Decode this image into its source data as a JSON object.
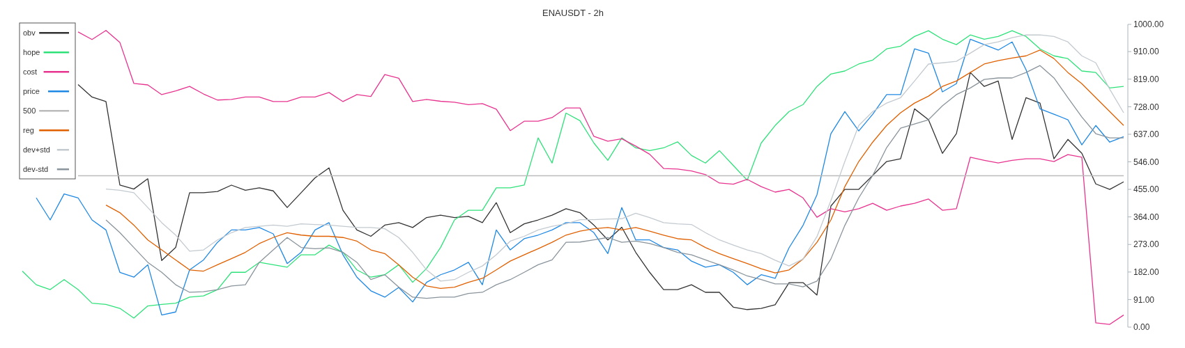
{
  "chart_data": {
    "type": "line",
    "title": "ENAUSDT - 2h",
    "categories": [
      null,
      null,
      null,
      null,
      null,
      null,
      null,
      null,
      null,
      null,
      null,
      null,
      null,
      null,
      null,
      null,
      null,
      null,
      null,
      null,
      null,
      null,
      null,
      null,
      null,
      null,
      null,
      null,
      null,
      null,
      null,
      null,
      null,
      null,
      null,
      null,
      null,
      null,
      null,
      null,
      null,
      null,
      null,
      null,
      null,
      null,
      null,
      null,
      null,
      null,
      null,
      null,
      null,
      null,
      null,
      null,
      null,
      null,
      null,
      null,
      null,
      null,
      null,
      null,
      null,
      null,
      null,
      null,
      null,
      null,
      null,
      null,
      null,
      null,
      null,
      null,
      null,
      null,
      null,
      null
    ],
    "series": [
      {
        "name": "obv",
        "color": "#333333",
        "values": [
          null,
          null,
          null,
          null,
          801,
          760,
          745,
          469,
          456,
          490,
          220,
          263,
          444,
          444,
          448,
          469,
          452,
          460,
          450,
          395,
          444,
          493,
          526,
          386,
          321,
          300,
          337,
          345,
          329,
          362,
          370,
          362,
          366,
          345,
          411,
          312,
          341,
          354,
          370,
          391,
          378,
          337,
          288,
          330,
          247,
          181,
          124,
          124,
          140,
          115,
          115,
          66,
          58,
          62,
          74,
          147,
          147,
          106,
          400,
          455,
          455,
          501,
          547,
          556,
          721,
          685,
          574,
          639,
          841,
          795,
          813,
          620,
          758,
          740,
          556,
          620,
          574,
          473,
          455,
          480
        ]
      },
      {
        "name": "hope",
        "color": "#2ee27a",
        "values": [
          185,
          140,
          124,
          157,
          124,
          79,
          75,
          62,
          30,
          70,
          75,
          79,
          99,
          103,
          124,
          181,
          181,
          214,
          206,
          198,
          239,
          239,
          271,
          247,
          189,
          165,
          173,
          206,
          148,
          194,
          263,
          354,
          386,
          386,
          460,
          460,
          469,
          625,
          542,
          707,
          682,
          608,
          551,
          625,
          592,
          583,
          592,
          612,
          567,
          542,
          583,
          534,
          485,
          608,
          666,
          712,
          735,
          795,
          836,
          846,
          869,
          882,
          919,
          928,
          960,
          979,
          951,
          933,
          965,
          951,
          960,
          979,
          960,
          919,
          896,
          887,
          846,
          841,
          790,
          795
        ]
      },
      {
        "name": "cost",
        "color": "#e8338f",
        "values": [
          null,
          null,
          null,
          null,
          975,
          950,
          980,
          940,
          805,
          800,
          768,
          780,
          795,
          770,
          750,
          752,
          760,
          760,
          745,
          745,
          760,
          760,
          775,
          745,
          768,
          762,
          834,
          822,
          745,
          752,
          746,
          743,
          735,
          738,
          720,
          649,
          680,
          680,
          692,
          724,
          724,
          630,
          614,
          622,
          598,
          571,
          524,
          522,
          516,
          504,
          476,
          472,
          488,
          464,
          446,
          455,
          427,
          363,
          391,
          381,
          391,
          409,
          386,
          400,
          409,
          423,
          386,
          391,
          561,
          551,
          542,
          551,
          556,
          556,
          547,
          570,
          561,
          14,
          9,
          40
        ]
      },
      {
        "name": "price",
        "color": "#1e88e5",
        "values": [
          null,
          427,
          354,
          440,
          427,
          354,
          321,
          181,
          165,
          206,
          40,
          50,
          189,
          222,
          280,
          321,
          321,
          329,
          308,
          210,
          247,
          321,
          345,
          239,
          165,
          120,
          99,
          131,
          83,
          148,
          173,
          189,
          214,
          140,
          321,
          255,
          292,
          304,
          321,
          345,
          345,
          312,
          243,
          395,
          288,
          288,
          263,
          255,
          218,
          198,
          206,
          181,
          140,
          173,
          161,
          262,
          336,
          437,
          639,
          712,
          648,
          703,
          768,
          768,
          919,
          905,
          777,
          804,
          951,
          933,
          915,
          942,
          850,
          721,
          703,
          685,
          602,
          666,
          611,
          629
        ]
      },
      {
        "name": "500",
        "color": "#bbbbbb",
        "values": [
          null,
          null,
          null,
          null,
          500,
          500,
          500,
          500,
          500,
          500,
          500,
          500,
          500,
          500,
          500,
          500,
          500,
          500,
          500,
          500,
          500,
          500,
          500,
          500,
          500,
          500,
          500,
          500,
          500,
          500,
          500,
          500,
          500,
          500,
          500,
          500,
          500,
          500,
          500,
          500,
          500,
          500,
          500,
          500,
          500,
          500,
          500,
          500,
          500,
          500,
          500,
          500,
          500,
          500,
          500,
          500,
          500,
          500,
          500,
          500,
          500,
          500,
          500,
          500,
          500,
          500,
          500,
          500,
          500,
          500,
          500,
          500,
          500,
          500,
          500,
          500,
          500,
          500,
          500,
          500
        ]
      },
      {
        "name": "reg",
        "color": "#e06000",
        "values": [
          null,
          null,
          null,
          null,
          null,
          null,
          403,
          378,
          337,
          288,
          255,
          222,
          189,
          185,
          206,
          226,
          247,
          276,
          296,
          312,
          304,
          300,
          300,
          296,
          284,
          255,
          243,
          206,
          165,
          136,
          128,
          132,
          148,
          161,
          189,
          218,
          239,
          259,
          280,
          304,
          317,
          325,
          329,
          321,
          329,
          317,
          304,
          292,
          288,
          263,
          243,
          226,
          210,
          193,
          179,
          189,
          225,
          280,
          354,
          464,
          547,
          611,
          666,
          708,
          740,
          763,
          795,
          813,
          841,
          869,
          880,
          889,
          896,
          915,
          887,
          841,
          804,
          758,
          712,
          666
        ]
      },
      {
        "name": "dev+std",
        "color": "#c3cad0",
        "values": [
          null,
          null,
          null,
          null,
          null,
          null,
          456,
          452,
          444,
          395,
          345,
          304,
          251,
          255,
          288,
          312,
          329,
          333,
          337,
          333,
          341,
          339,
          337,
          333,
          329,
          329,
          325,
          296,
          247,
          189,
          152,
          157,
          181,
          202,
          239,
          284,
          300,
          321,
          333,
          341,
          355,
          355,
          357,
          358,
          376,
          362,
          345,
          341,
          339,
          312,
          288,
          271,
          255,
          243,
          221,
          202,
          225,
          299,
          418,
          547,
          666,
          712,
          740,
          758,
          813,
          869,
          873,
          878,
          905,
          933,
          942,
          956,
          965,
          965,
          960,
          942,
          896,
          873,
          786,
          708
        ]
      },
      {
        "name": "dev-std",
        "color": "#8a949c",
        "values": [
          null,
          null,
          null,
          null,
          null,
          null,
          354,
          312,
          263,
          214,
          181,
          140,
          115,
          117,
          124,
          136,
          140,
          214,
          255,
          296,
          263,
          259,
          262,
          247,
          214,
          157,
          173,
          132,
          99,
          95,
          99,
          99,
          111,
          115,
          140,
          157,
          181,
          206,
          222,
          280,
          281,
          288,
          296,
          280,
          284,
          276,
          263,
          247,
          239,
          222,
          206,
          189,
          169,
          157,
          143,
          143,
          133,
          152,
          225,
          336,
          427,
          501,
          593,
          657,
          671,
          685,
          731,
          768,
          790,
          818,
          823,
          823,
          841,
          864,
          823,
          758,
          694,
          639,
          625,
          625
        ]
      }
    ],
    "ylim": [
      0,
      1000
    ],
    "yticks": [
      {
        "value": 0,
        "label": "0.00"
      },
      {
        "value": 91,
        "label": "91.00"
      },
      {
        "value": 182,
        "label": "182.00"
      },
      {
        "value": 273,
        "label": "273.00"
      },
      {
        "value": 364,
        "label": "364.00"
      },
      {
        "value": 455,
        "label": "455.00"
      },
      {
        "value": 546,
        "label": "546.00"
      },
      {
        "value": 637,
        "label": "637.00"
      },
      {
        "value": 728,
        "label": "728.00"
      },
      {
        "value": 819,
        "label": "819.00"
      },
      {
        "value": 910,
        "label": "910.00"
      },
      {
        "value": 1000,
        "label": "1000.00"
      }
    ],
    "tick_labels": "y",
    "legend": "top left"
  }
}
